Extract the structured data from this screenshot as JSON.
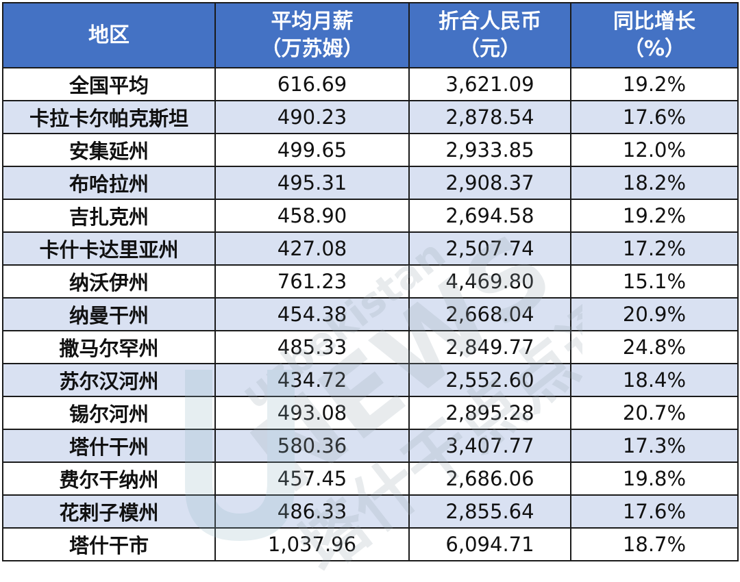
{
  "header": {
    "region": "地区",
    "salary_line1": "平均月薪",
    "salary_line2": "（万苏姆）",
    "rmb_line1": "折合人民币",
    "rmb_line2": "（元）",
    "growth_line1": "同比增长",
    "growth_line2": "（%）"
  },
  "rows": [
    {
      "region": "全国平均",
      "salary": "616.69",
      "rmb": "3,621.09",
      "growth": "19.2%"
    },
    {
      "region": "卡拉卡尔帕克斯坦",
      "salary": "490.23",
      "rmb": "2,878.54",
      "growth": "17.6%"
    },
    {
      "region": "安集延州",
      "salary": "499.65",
      "rmb": "2,933.85",
      "growth": "12.0%"
    },
    {
      "region": "布哈拉州",
      "salary": "495.31",
      "rmb": "2,908.37",
      "growth": "18.2%"
    },
    {
      "region": "吉扎克州",
      "salary": "458.90",
      "rmb": "2,694.58",
      "growth": "19.2%"
    },
    {
      "region": "卡什卡达里亚州",
      "salary": "427.08",
      "rmb": "2,507.74",
      "growth": "17.2%"
    },
    {
      "region": "纳沃伊州",
      "salary": "761.23",
      "rmb": "4,469.80",
      "growth": "15.1%"
    },
    {
      "region": "纳曼干州",
      "salary": "454.38",
      "rmb": "2,668.04",
      "growth": "20.9%"
    },
    {
      "region": "撒马尔罕州",
      "salary": "485.33",
      "rmb": "2,849.77",
      "growth": "24.8%"
    },
    {
      "region": "苏尔汉河州",
      "salary": "434.72",
      "rmb": "2,552.60",
      "growth": "18.4%"
    },
    {
      "region": "锡尔河州",
      "salary": "493.08",
      "rmb": "2,895.28",
      "growth": "20.7%"
    },
    {
      "region": "塔什干州",
      "salary": "580.36",
      "rmb": "3,407.77",
      "growth": "17.3%"
    },
    {
      "region": "费尔干纳州",
      "salary": "457.45",
      "rmb": "2,686.06",
      "growth": "19.8%"
    },
    {
      "region": "花剌子模州",
      "salary": "486.33",
      "rmb": "2,855.64",
      "growth": "17.6%"
    },
    {
      "region": "塔什干市",
      "salary": "1,037.96",
      "rmb": "6,094.71",
      "growth": "18.7%"
    }
  ],
  "watermark": {
    "top_text": "uzbekistan",
    "main_text": "NEWS",
    "chinese_text": "塔什干点点通"
  }
}
